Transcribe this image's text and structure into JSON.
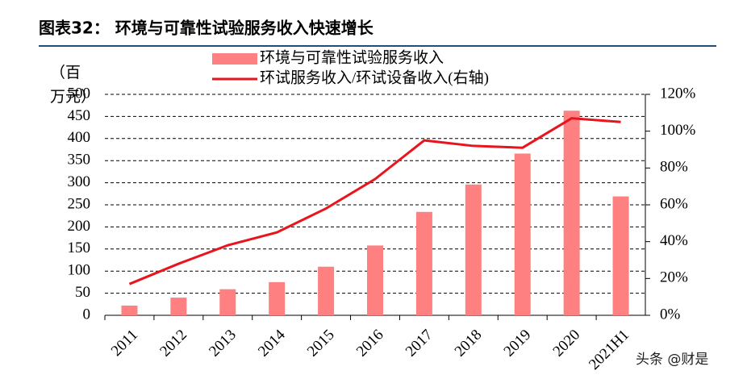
{
  "title": "图表32：  环境与可靠性试验服务收入快速增长",
  "watermark": "头条 @财是",
  "chart_data": {
    "type": "bar",
    "y_label": "（百万元）",
    "categories": [
      "2011",
      "2012",
      "2013",
      "2014",
      "2015",
      "2016",
      "2017",
      "2018",
      "2019",
      "2020",
      "2021H1"
    ],
    "series": [
      {
        "name": "环境与可靠性试验服务收入",
        "type": "bar",
        "color": "#ff8080",
        "values": [
          22,
          40,
          59,
          75,
          110,
          158,
          234,
          296,
          366,
          463,
          269
        ]
      },
      {
        "name": "环试服务收入/环试设备收入(右轴)",
        "type": "line",
        "axis": "y2",
        "color": "#e8141e",
        "values": [
          17,
          28,
          38,
          45,
          58,
          74,
          95,
          92,
          91,
          107,
          105
        ]
      }
    ],
    "ylim": [
      0,
      500
    ],
    "yticks": [
      0,
      50,
      100,
      150,
      200,
      250,
      300,
      350,
      400,
      450,
      500
    ],
    "y2lim": [
      0,
      120
    ],
    "y2ticks": [
      {
        "value": 0,
        "label": "0%"
      },
      {
        "value": 20,
        "label": "20%"
      },
      {
        "value": 40,
        "label": "40%"
      },
      {
        "value": 60,
        "label": "60%"
      },
      {
        "value": 80,
        "label": "80%"
      },
      {
        "value": 100,
        "label": "100%"
      },
      {
        "value": 120,
        "label": "120%"
      }
    ],
    "grid": true
  }
}
